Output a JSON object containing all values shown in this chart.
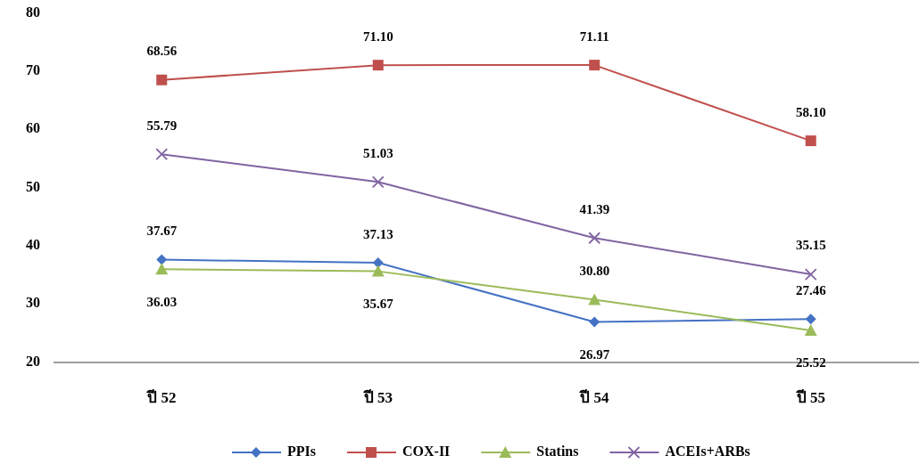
{
  "chart_data": {
    "type": "line",
    "categories": [
      "ปี 52",
      "ปี 53",
      "ปี 54",
      "ปี 55"
    ],
    "series": [
      {
        "name": "PPIs",
        "color": "#4472c4",
        "marker": "diamond",
        "values": [
          37.67,
          37.13,
          26.97,
          27.46
        ],
        "value_labels": [
          "37.67",
          "37.13",
          "26.97",
          "27.46"
        ]
      },
      {
        "name": "COX-II",
        "color": "#c0504d",
        "marker": "square",
        "values": [
          68.56,
          71.1,
          71.11,
          58.1
        ],
        "value_labels": [
          "68.56",
          "71.10",
          "71.11",
          "58.10"
        ]
      },
      {
        "name": "Statins",
        "color": "#9bbb59",
        "marker": "triangle",
        "values": [
          36.03,
          35.67,
          30.8,
          25.52
        ],
        "value_labels": [
          "36.03",
          "35.67",
          "30.80",
          "25.52"
        ]
      },
      {
        "name": "ACEIs+ARBs",
        "color": "#8064a2",
        "marker": "cross",
        "values": [
          55.79,
          51.03,
          41.39,
          35.15
        ],
        "value_labels": [
          "55.79",
          "51.03",
          "41.39",
          "35.15"
        ]
      }
    ],
    "ylim": [
      20,
      80
    ],
    "yticks": [
      20,
      30,
      40,
      50,
      60,
      70,
      80
    ],
    "legend": "bottom",
    "grid": false
  }
}
